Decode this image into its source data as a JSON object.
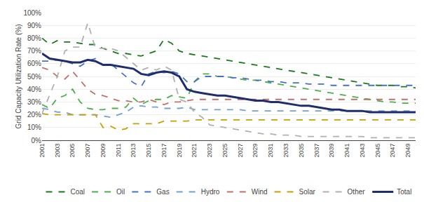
{
  "chart_data": {
    "type": "line",
    "y_label": "Grid Capacity Utilization Rate (%)",
    "x": [
      2001,
      2002,
      2003,
      2004,
      2005,
      2006,
      2007,
      2008,
      2009,
      2010,
      2011,
      2012,
      2013,
      2014,
      2015,
      2016,
      2017,
      2018,
      2019,
      2020,
      2021,
      2022,
      2023,
      2024,
      2025,
      2026,
      2027,
      2028,
      2029,
      2030,
      2031,
      2032,
      2033,
      2034,
      2035,
      2036,
      2037,
      2038,
      2039,
      2040,
      2041,
      2042,
      2043,
      2044,
      2045,
      2046,
      2047,
      2048,
      2049,
      2050
    ],
    "series": [
      {
        "name": "Coal",
        "color": "#1a7a1a",
        "line_style": "dashed",
        "values": [
          80,
          75,
          78,
          77,
          77,
          76,
          75,
          75,
          72,
          70,
          68,
          68,
          67,
          66,
          68,
          70,
          79,
          76,
          70,
          68,
          67,
          66,
          65,
          64,
          63,
          62,
          61,
          60,
          59,
          58,
          57,
          56,
          55,
          54,
          53,
          52,
          51,
          50,
          49,
          48,
          47,
          46,
          45,
          44,
          43,
          43,
          43,
          42,
          42,
          41
        ]
      },
      {
        "name": "Oil",
        "color": "#4caf4c",
        "line_style": "dashed",
        "values": [
          28,
          25,
          33,
          35,
          40,
          30,
          25,
          24,
          24,
          25,
          25,
          26,
          33,
          28,
          31,
          32,
          32,
          35,
          34,
          33,
          46,
          52,
          52,
          50,
          50,
          49,
          48,
          47,
          47,
          46,
          45,
          44,
          43,
          42,
          41,
          40,
          39,
          38,
          37,
          36,
          35,
          34,
          33,
          32,
          31,
          30,
          30,
          29,
          29,
          29
        ]
      },
      {
        "name": "Gas",
        "color": "#4472c4",
        "line_style": "dashed",
        "values": [
          62,
          62,
          63,
          62,
          60,
          58,
          62,
          64,
          59,
          60,
          55,
          50,
          45,
          42,
          52,
          54,
          53,
          54,
          52,
          46,
          46,
          50,
          50,
          50,
          50,
          49,
          49,
          48,
          47,
          47,
          46,
          46,
          45,
          45,
          45,
          44,
          44,
          44,
          43,
          43,
          43,
          43,
          43,
          43,
          43,
          43,
          43,
          43,
          43,
          43
        ]
      },
      {
        "name": "Hydro",
        "color": "#70a0d4",
        "line_style": "dashed",
        "values": [
          25,
          24,
          22,
          22,
          20,
          20,
          20,
          20,
          19,
          18,
          20,
          22,
          26,
          27,
          26,
          26,
          25,
          25,
          25,
          26,
          24,
          24,
          24,
          24,
          24,
          24,
          24,
          23,
          23,
          23,
          23,
          23,
          23,
          23,
          23,
          23,
          23,
          23,
          23,
          23,
          23,
          23,
          23,
          23,
          23,
          23,
          23,
          23,
          23,
          23
        ]
      },
      {
        "name": "Wind",
        "color": "#c0706d",
        "line_style": "dashed",
        "values": [
          57,
          55,
          50,
          48,
          54,
          47,
          40,
          36,
          35,
          33,
          31,
          31,
          30,
          30,
          32,
          30,
          28,
          30,
          30,
          31,
          32,
          32,
          32,
          32,
          32,
          32,
          32,
          32,
          32,
          32,
          32,
          32,
          32,
          32,
          32,
          32,
          32,
          32,
          32,
          32,
          32,
          32,
          32,
          32,
          32,
          32,
          32,
          32,
          32,
          32
        ]
      },
      {
        "name": "Solar",
        "color": "#c8a000",
        "line_style": "dashed",
        "values": [
          21,
          20,
          20,
          20,
          20,
          20,
          20,
          20,
          10,
          11,
          8,
          9,
          13,
          13,
          13,
          13,
          15,
          15,
          15,
          15,
          16,
          16,
          16,
          16,
          16,
          16,
          16,
          16,
          16,
          16,
          16,
          16,
          16,
          16,
          16,
          16,
          16,
          16,
          16,
          16,
          16,
          16,
          16,
          16,
          16,
          16,
          16,
          16,
          16,
          16
        ]
      },
      {
        "name": "Other",
        "color": "#b0b0b0",
        "line_style": "dashed",
        "values": [
          21,
          35,
          50,
          70,
          73,
          73,
          92,
          72,
          72,
          72,
          70,
          65,
          60,
          55,
          57,
          55,
          58,
          55,
          32,
          30,
          22,
          18,
          12,
          11,
          10,
          9,
          8,
          7,
          6,
          5,
          5,
          4,
          4,
          4,
          3,
          3,
          3,
          3,
          3,
          3,
          3,
          3,
          3,
          2,
          2,
          2,
          2,
          2,
          2,
          2
        ]
      },
      {
        "name": "Total",
        "color": "#1f2d6e",
        "line_style": "solid",
        "values": [
          68,
          64,
          63,
          62,
          61,
          61,
          63,
          62,
          59,
          59,
          58,
          57,
          56,
          52,
          51,
          53,
          54,
          53,
          50,
          40,
          38,
          37,
          36,
          35,
          35,
          34,
          33,
          32,
          31,
          31,
          30,
          30,
          29,
          28,
          27,
          27,
          26,
          25,
          24,
          24,
          23,
          23,
          23,
          22,
          22,
          22,
          22,
          22,
          22,
          22
        ]
      }
    ],
    "xlim": [
      2001,
      2050
    ],
    "xticks": [
      2001,
      2003,
      2005,
      2007,
      2009,
      2011,
      2013,
      2015,
      2017,
      2019,
      2021,
      2023,
      2025,
      2027,
      2029,
      2031,
      2033,
      2035,
      2037,
      2039,
      2041,
      2043,
      2045,
      2047,
      2049
    ],
    "ylim": [
      0,
      100
    ],
    "yticks": [
      {
        "value": 0,
        "label": "0%"
      },
      {
        "value": 10,
        "label": "10%"
      },
      {
        "value": 20,
        "label": "20%"
      },
      {
        "value": 30,
        "label": "30%"
      },
      {
        "value": 40,
        "label": "40%"
      },
      {
        "value": 50,
        "label": "50%"
      },
      {
        "value": 60,
        "label": "60%"
      },
      {
        "value": 70,
        "label": "70%"
      },
      {
        "value": 80,
        "label": "80%"
      },
      {
        "value": 90,
        "label": "90%"
      },
      {
        "value": 100,
        "label": "100%"
      }
    ],
    "grid": true,
    "legend": "bottom"
  }
}
